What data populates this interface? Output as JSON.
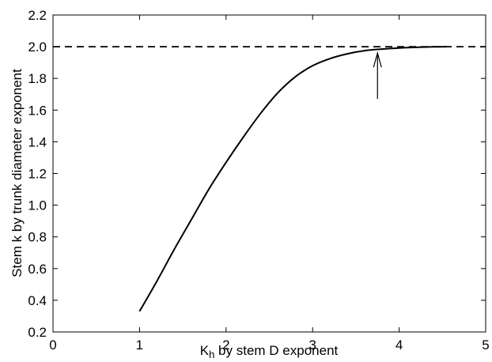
{
  "chart_data": {
    "type": "line",
    "xlabel": {
      "main": "K",
      "sub": "h",
      "rest": " by stem D exponent"
    },
    "ylabel": "Stem k by trunk diameter exponent",
    "xlim": [
      0,
      5
    ],
    "ylim": [
      0.2,
      2.2
    ],
    "xticks": [
      0,
      1,
      2,
      3,
      4,
      5
    ],
    "xtick_labels": [
      "0",
      "1",
      "2",
      "3",
      "4",
      "5"
    ],
    "yticks": [
      0.2,
      0.4,
      0.6,
      0.8,
      1.0,
      1.2,
      1.4,
      1.6,
      1.8,
      2.0,
      2.2
    ],
    "ytick_labels": [
      "0.2",
      "0.4",
      "0.6",
      "0.8",
      "1.0",
      "1.2",
      "1.4",
      "1.6",
      "1.8",
      "2.0",
      "2.2"
    ],
    "grid": false,
    "series": [
      {
        "style": "solid",
        "color": "#000000",
        "x": [
          1.0,
          1.2,
          1.4,
          1.6,
          1.8,
          2.0,
          2.2,
          2.4,
          2.6,
          2.8,
          3.0,
          3.2,
          3.4,
          3.6,
          3.8,
          4.0,
          4.2,
          4.4,
          4.55
        ],
        "y": [
          0.33,
          0.52,
          0.72,
          0.91,
          1.1,
          1.27,
          1.43,
          1.58,
          1.71,
          1.81,
          1.88,
          1.925,
          1.955,
          1.975,
          1.985,
          1.992,
          1.996,
          1.999,
          2.0
        ]
      },
      {
        "style": "dashed",
        "color": "#000000",
        "x": [
          0,
          5
        ],
        "y": [
          2.0,
          2.0
        ]
      }
    ],
    "annotations": [
      {
        "type": "arrow",
        "x": 3.75,
        "y_from": 1.67,
        "y_to": 1.96
      }
    ]
  }
}
